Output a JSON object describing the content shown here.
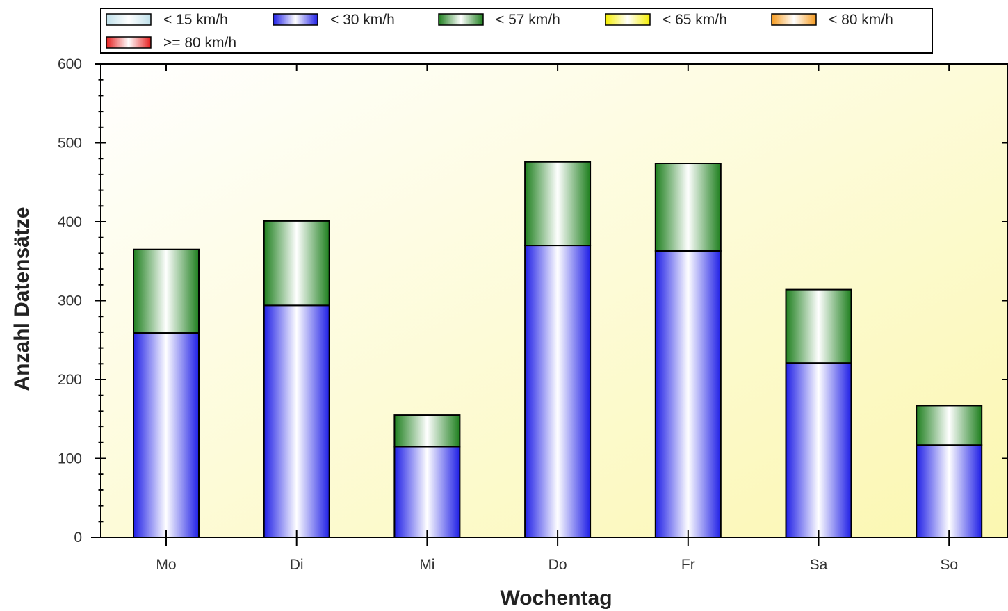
{
  "chart_data": {
    "type": "bar",
    "stacked": true,
    "title": "",
    "xlabel": "Wochentag",
    "ylabel": "Anzahl Datensätze",
    "ylim": [
      0,
      600
    ],
    "yticks": [
      0,
      100,
      200,
      300,
      400,
      500,
      600
    ],
    "grid": false,
    "legend_position": "top",
    "categories": [
      "Mo",
      "Di",
      "Mi",
      "Do",
      "Fr",
      "Sa",
      "So"
    ],
    "series": [
      {
        "name": "< 15 km/h",
        "color": "#bfe0ea",
        "values": [
          0,
          0,
          0,
          0,
          0,
          0,
          0
        ]
      },
      {
        "name": "< 30 km/h",
        "color": "#1f1fe6",
        "values": [
          259,
          294,
          115,
          370,
          363,
          221,
          117
        ]
      },
      {
        "name": "< 57 km/h",
        "color": "#1e7f1e",
        "values": [
          106,
          107,
          40,
          106,
          111,
          93,
          50
        ]
      },
      {
        "name": "< 65 km/h",
        "color": "#f5ee00",
        "values": [
          0,
          0,
          0,
          0,
          0,
          0,
          0
        ]
      },
      {
        "name": "< 80 km/h",
        "color": "#f59a1e",
        "values": [
          0,
          0,
          0,
          0,
          0,
          0,
          0
        ]
      },
      {
        "name": ">= 80 km/h",
        "color": "#e61e1e",
        "values": [
          0,
          0,
          0,
          0,
          0,
          0,
          0
        ]
      }
    ]
  }
}
